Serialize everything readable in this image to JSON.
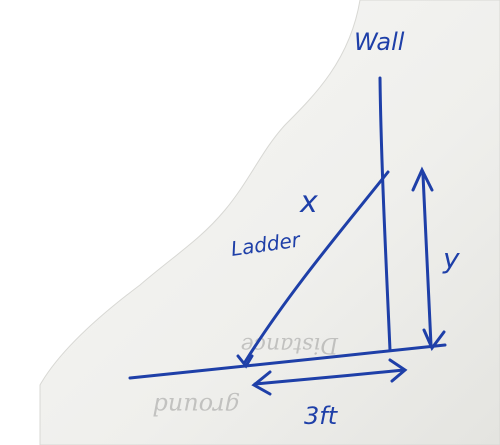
{
  "labels": {
    "wall": "Wall",
    "ladder": "Ladder",
    "ladder_length": "x",
    "height": "y",
    "distance": "3ft"
  },
  "bleed_through": {
    "line1": "Distance",
    "line2": "ground"
  },
  "colors": {
    "ink": "#1e3fa8",
    "paper": "#f3f3f0",
    "paper_shadow": "#dcdcd8",
    "background": "#ffffff"
  }
}
